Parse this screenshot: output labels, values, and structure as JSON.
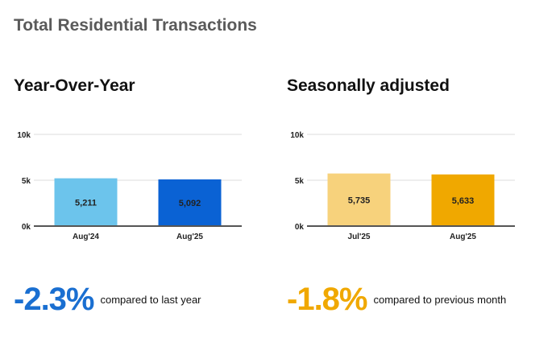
{
  "title": "Total Residential Transactions",
  "left": {
    "heading": "Year-Over-Year",
    "change": "-2.3%",
    "caption": "compared to last  year",
    "change_color": "#1a6fd1"
  },
  "right": {
    "heading": "Seasonally adjusted",
    "change": "-1.8%",
    "caption": "compared to  previous month",
    "change_color": "#f0a800"
  },
  "chart_data": [
    {
      "type": "bar",
      "categories": [
        "Aug'24",
        "Aug'25"
      ],
      "values": [
        5211,
        5092
      ],
      "value_labels": [
        "5,211",
        "5,092"
      ],
      "colors": [
        "#6cc4ec",
        "#0a62d4"
      ],
      "ylim": [
        0,
        10000
      ],
      "yticks": [
        0,
        5000,
        10000
      ],
      "ytick_labels": [
        "0k",
        "5k",
        "10k"
      ],
      "grid": true
    },
    {
      "type": "bar",
      "categories": [
        "Jul'25",
        "Aug'25"
      ],
      "values": [
        5735,
        5633
      ],
      "value_labels": [
        "5,735",
        "5,633"
      ],
      "colors": [
        "#f7d27c",
        "#f0a800"
      ],
      "ylim": [
        0,
        10000
      ],
      "yticks": [
        0,
        5000,
        10000
      ],
      "ytick_labels": [
        "0k",
        "5k",
        "10k"
      ],
      "grid": true
    }
  ]
}
